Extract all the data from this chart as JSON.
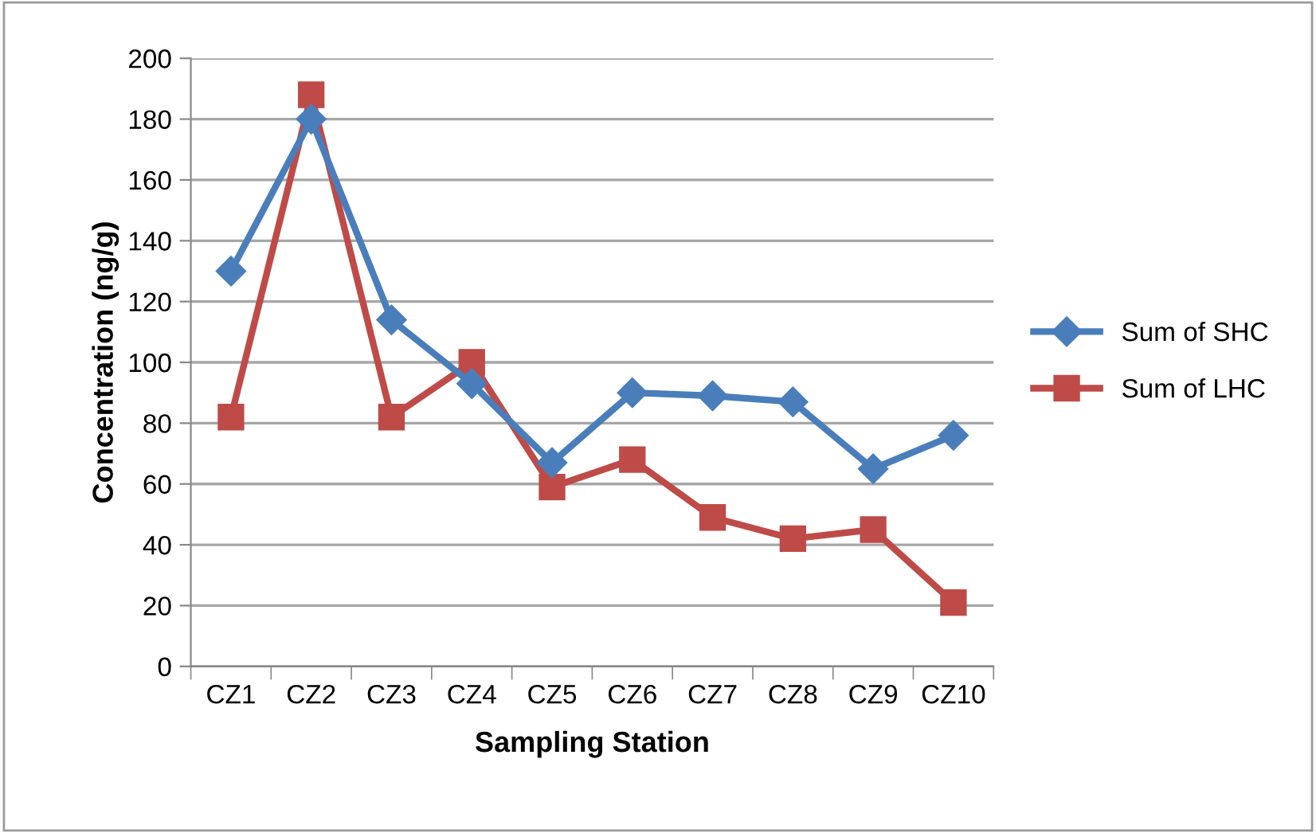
{
  "chart_data": {
    "type": "line",
    "xlabel": "Sampling Station",
    "ylabel": "Concentration (ng/g)",
    "categories": [
      "CZ1",
      "CZ2",
      "CZ3",
      "CZ4",
      "CZ5",
      "CZ6",
      "CZ7",
      "CZ8",
      "CZ9",
      "CZ10"
    ],
    "series": [
      {
        "name": "Sum of SHC",
        "color": "#4a7ebb",
        "marker": "diamond",
        "values": [
          130,
          180,
          114,
          93,
          67,
          90,
          89,
          87,
          65,
          76
        ]
      },
      {
        "name": "Sum of LHC",
        "color": "#be4b48",
        "marker": "square",
        "values": [
          82,
          188,
          82,
          100,
          59,
          68,
          49,
          42,
          45,
          21
        ]
      }
    ],
    "ylim": [
      0,
      200
    ],
    "yticks": [
      0,
      20,
      40,
      60,
      80,
      100,
      120,
      140,
      160,
      180,
      200
    ],
    "grid": "y",
    "legend": "right",
    "line_style": "solid"
  }
}
